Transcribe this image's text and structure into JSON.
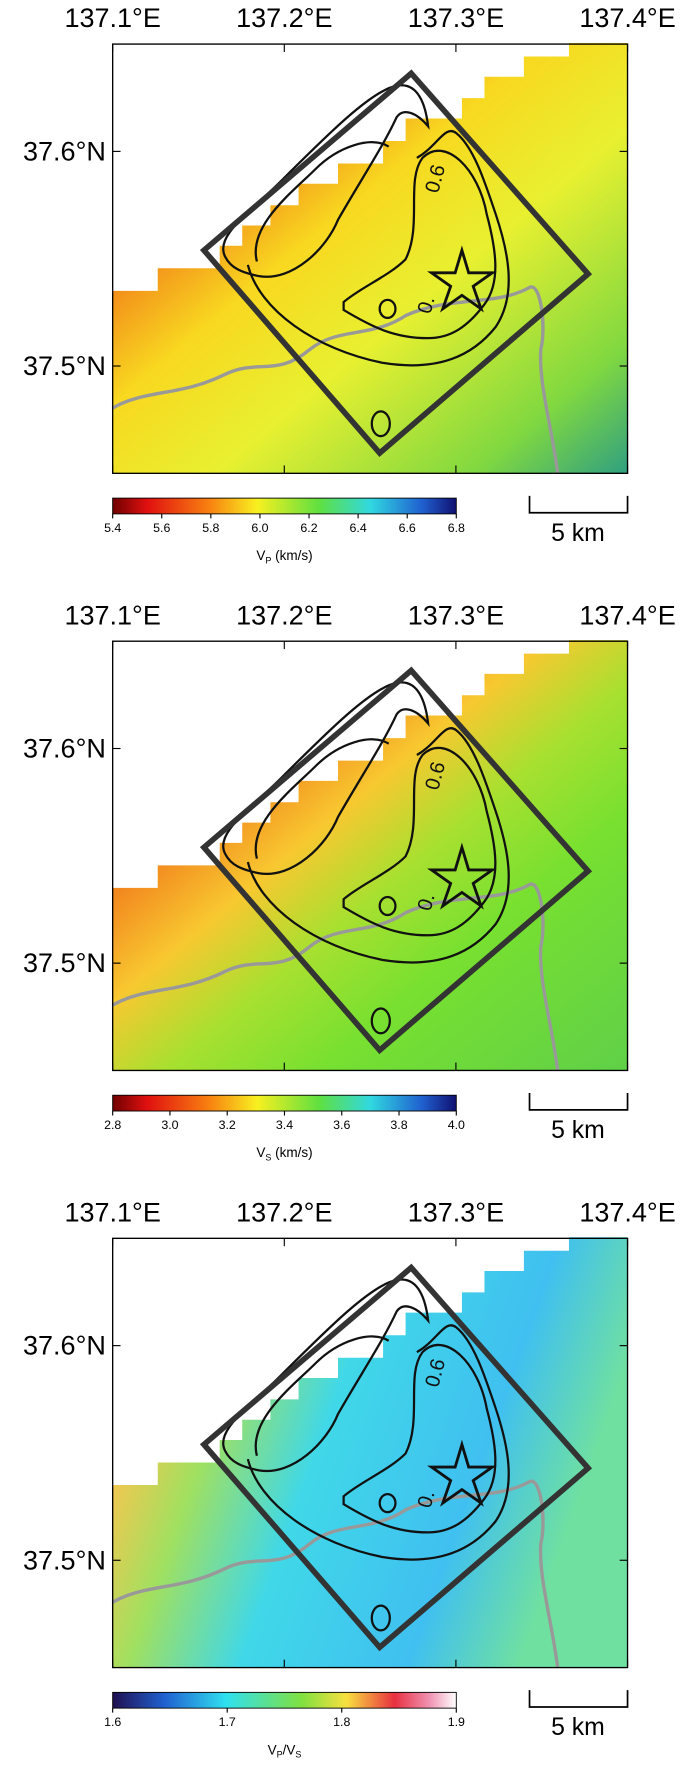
{
  "panels": [
    {
      "xlim": [
        137.1,
        137.4
      ],
      "ylim": [
        37.45,
        37.65
      ],
      "xticks": [
        {
          "value": 137.1,
          "label": "137.1°E"
        },
        {
          "value": 137.2,
          "label": "137.2°E"
        },
        {
          "value": 137.3,
          "label": "137.3°E"
        },
        {
          "value": 137.4,
          "label": "137.4°E"
        }
      ],
      "yticks": [
        {
          "value": 37.5,
          "label": "37.5°N"
        },
        {
          "value": 37.6,
          "label": "37.6°N"
        }
      ],
      "colorbar": {
        "lim": [
          5.4,
          6.8
        ],
        "palette": "vel",
        "ticks": [
          {
            "value": 5.4,
            "label": "5.4"
          },
          {
            "value": 5.6,
            "label": "5.6"
          },
          {
            "value": 5.8,
            "label": "5.8"
          },
          {
            "value": 6.0,
            "label": "6.0"
          },
          {
            "value": 6.2,
            "label": "6.2"
          },
          {
            "value": 6.4,
            "label": "6.4"
          },
          {
            "value": 6.6,
            "label": "6.6"
          },
          {
            "value": 6.8,
            "label": "6.8"
          }
        ],
        "label_parts": [
          {
            "text": "V"
          },
          {
            "text": "P",
            "sub": true
          },
          {
            "text": " (km/s)"
          }
        ]
      },
      "scale_bar": "5 km",
      "contour_labels": [
        "0.6",
        "0."
      ]
    },
    {
      "xlim": [
        137.1,
        137.4
      ],
      "ylim": [
        37.45,
        37.65
      ],
      "xticks": [
        {
          "value": 137.1,
          "label": "137.1°E"
        },
        {
          "value": 137.2,
          "label": "137.2°E"
        },
        {
          "value": 137.3,
          "label": "137.3°E"
        },
        {
          "value": 137.4,
          "label": "137.4°E"
        }
      ],
      "yticks": [
        {
          "value": 37.5,
          "label": "37.5°N"
        },
        {
          "value": 37.6,
          "label": "37.6°N"
        }
      ],
      "colorbar": {
        "lim": [
          2.8,
          4.0
        ],
        "palette": "vel",
        "ticks": [
          {
            "value": 2.8,
            "label": "2.8"
          },
          {
            "value": 3.0,
            "label": "3.0"
          },
          {
            "value": 3.2,
            "label": "3.2"
          },
          {
            "value": 3.4,
            "label": "3.4"
          },
          {
            "value": 3.6,
            "label": "3.6"
          },
          {
            "value": 3.8,
            "label": "3.8"
          },
          {
            "value": 4.0,
            "label": "4.0"
          }
        ],
        "label_parts": [
          {
            "text": "V"
          },
          {
            "text": "S",
            "sub": true
          },
          {
            "text": " (km/s)"
          }
        ]
      },
      "scale_bar": "5 km",
      "contour_labels": [
        "0.6",
        "0."
      ]
    },
    {
      "xlim": [
        137.1,
        137.4
      ],
      "ylim": [
        37.45,
        37.65
      ],
      "xticks": [
        {
          "value": 137.1,
          "label": "137.1°E"
        },
        {
          "value": 137.2,
          "label": "137.2°E"
        },
        {
          "value": 137.3,
          "label": "137.3°E"
        },
        {
          "value": 137.4,
          "label": "137.4°E"
        }
      ],
      "yticks": [
        {
          "value": 37.5,
          "label": "37.5°N"
        },
        {
          "value": 37.6,
          "label": "37.6°N"
        }
      ],
      "colorbar": {
        "lim": [
          1.6,
          1.9
        ],
        "palette": "ratio",
        "ticks": [
          {
            "value": 1.6,
            "label": "1.6"
          },
          {
            "value": 1.7,
            "label": "1.7"
          },
          {
            "value": 1.8,
            "label": "1.8"
          },
          {
            "value": 1.9,
            "label": "1.9"
          }
        ],
        "label_parts": [
          {
            "text": "V"
          },
          {
            "text": "P",
            "sub": true
          },
          {
            "text": "/V"
          },
          {
            "text": "S",
            "sub": true
          }
        ]
      },
      "scale_bar": "5 km",
      "contour_labels": [
        "0.6",
        "0."
      ]
    }
  ]
}
